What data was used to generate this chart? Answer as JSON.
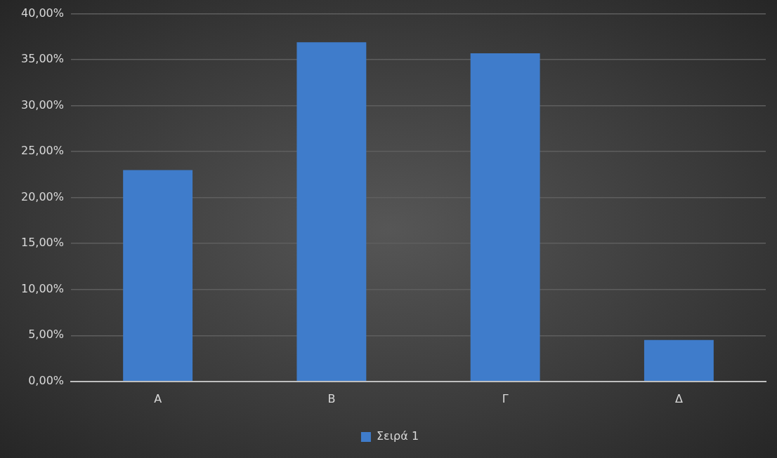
{
  "chart_data": {
    "type": "bar",
    "categories": [
      "Α",
      "Β",
      "Γ",
      "Δ"
    ],
    "series": [
      {
        "name": "Σειρά 1",
        "color": "#3f7ccb",
        "values": [
          23.0,
          36.9,
          35.7,
          4.5
        ]
      }
    ],
    "ylim": [
      0,
      40
    ],
    "yticks": [
      {
        "value": 0,
        "label": "0,00%"
      },
      {
        "value": 5,
        "label": "5,00%"
      },
      {
        "value": 10,
        "label": "10,00%"
      },
      {
        "value": 15,
        "label": "15,00%"
      },
      {
        "value": 20,
        "label": "20,00%"
      },
      {
        "value": 25,
        "label": "25,00%"
      },
      {
        "value": 30,
        "label": "30,00%"
      },
      {
        "value": 35,
        "label": "35,00%"
      },
      {
        "value": 40,
        "label": "40,00%"
      }
    ],
    "grid": "y",
    "legend": "bottom"
  }
}
